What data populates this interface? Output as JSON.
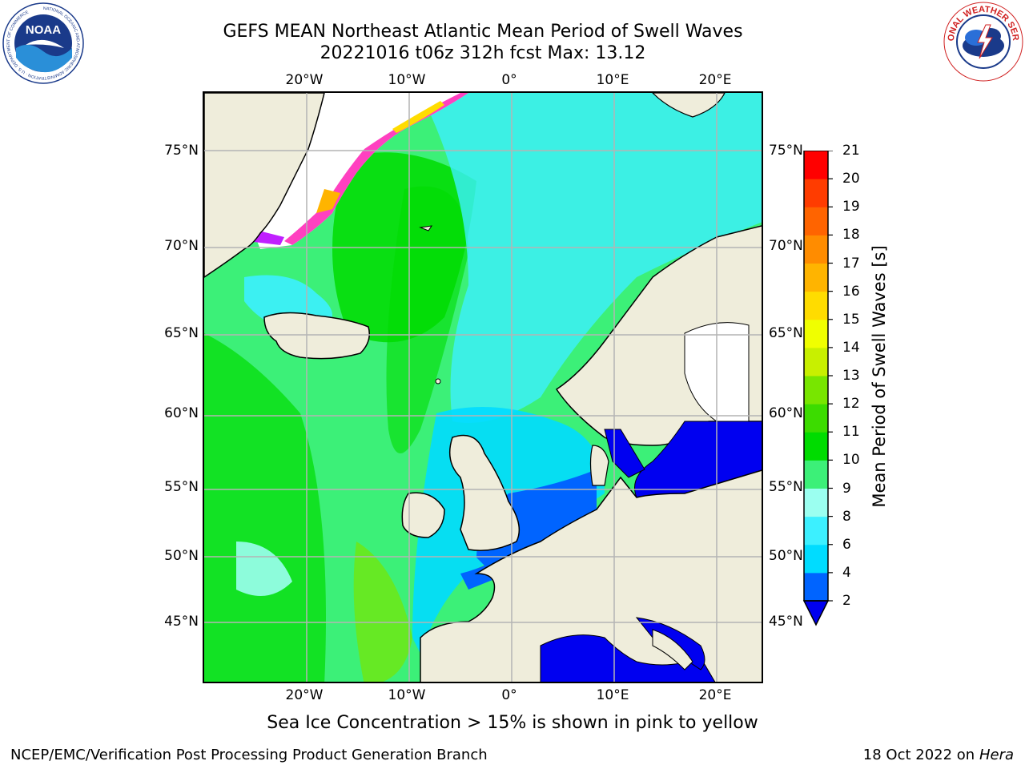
{
  "title_line1": "GEFS MEAN Northeast Atlantic Mean Period of Swell Waves",
  "title_line2": "20221016 t06z 312h fcst   Max: 13.12",
  "lat_labels": [
    "75°N",
    "70°N",
    "65°N",
    "60°N",
    "55°N",
    "50°N",
    "45°N"
  ],
  "lon_labels": [
    "20°W",
    "10°W",
    "0°",
    "10°E",
    "20°E"
  ],
  "colorbar": {
    "label": "Mean Period of Swell Waves [s]",
    "ticks": [
      "2",
      "4",
      "6",
      "8",
      "9",
      "10",
      "11",
      "12",
      "13",
      "14",
      "15",
      "16",
      "17",
      "18",
      "19",
      "20",
      "21"
    ],
    "colors": [
      "#0064ff",
      "#00dcff",
      "#3cf0ff",
      "#9bfff0",
      "#3cf078",
      "#00dc00",
      "#3cdc00",
      "#78e600",
      "#c8f000",
      "#f0ff00",
      "#ffdc00",
      "#ffb400",
      "#ff8c00",
      "#ff6400",
      "#ff3c00",
      "#ff0000"
    ],
    "extend_color": "#0000f0"
  },
  "legend_note": "Sea Ice Concentration > 15% is shown in pink to yellow",
  "footer_left": "NCEP/EMC/Verification Post Processing Product Generation Branch",
  "footer_date": "18 Oct 2022 on ",
  "footer_host": "Hera",
  "logo_left_text": "NOAA",
  "logo_left_ring": "NATIONAL OCEANIC AND ATMOSPHERIC ADMINISTRATION · U.S. DEPARTMENT OF COMMERCE",
  "logo_right_ring": "NATIONAL WEATHER SERVICE",
  "colors": {
    "land": "#efeddb",
    "ocean_main": "#3cf078",
    "ocean_mid": "#00dc00",
    "ocean_low": "#3cf0ff",
    "ocean_very_low": "#0000f0",
    "ice": "#ff40c0",
    "grid": "#b4b4b4"
  }
}
